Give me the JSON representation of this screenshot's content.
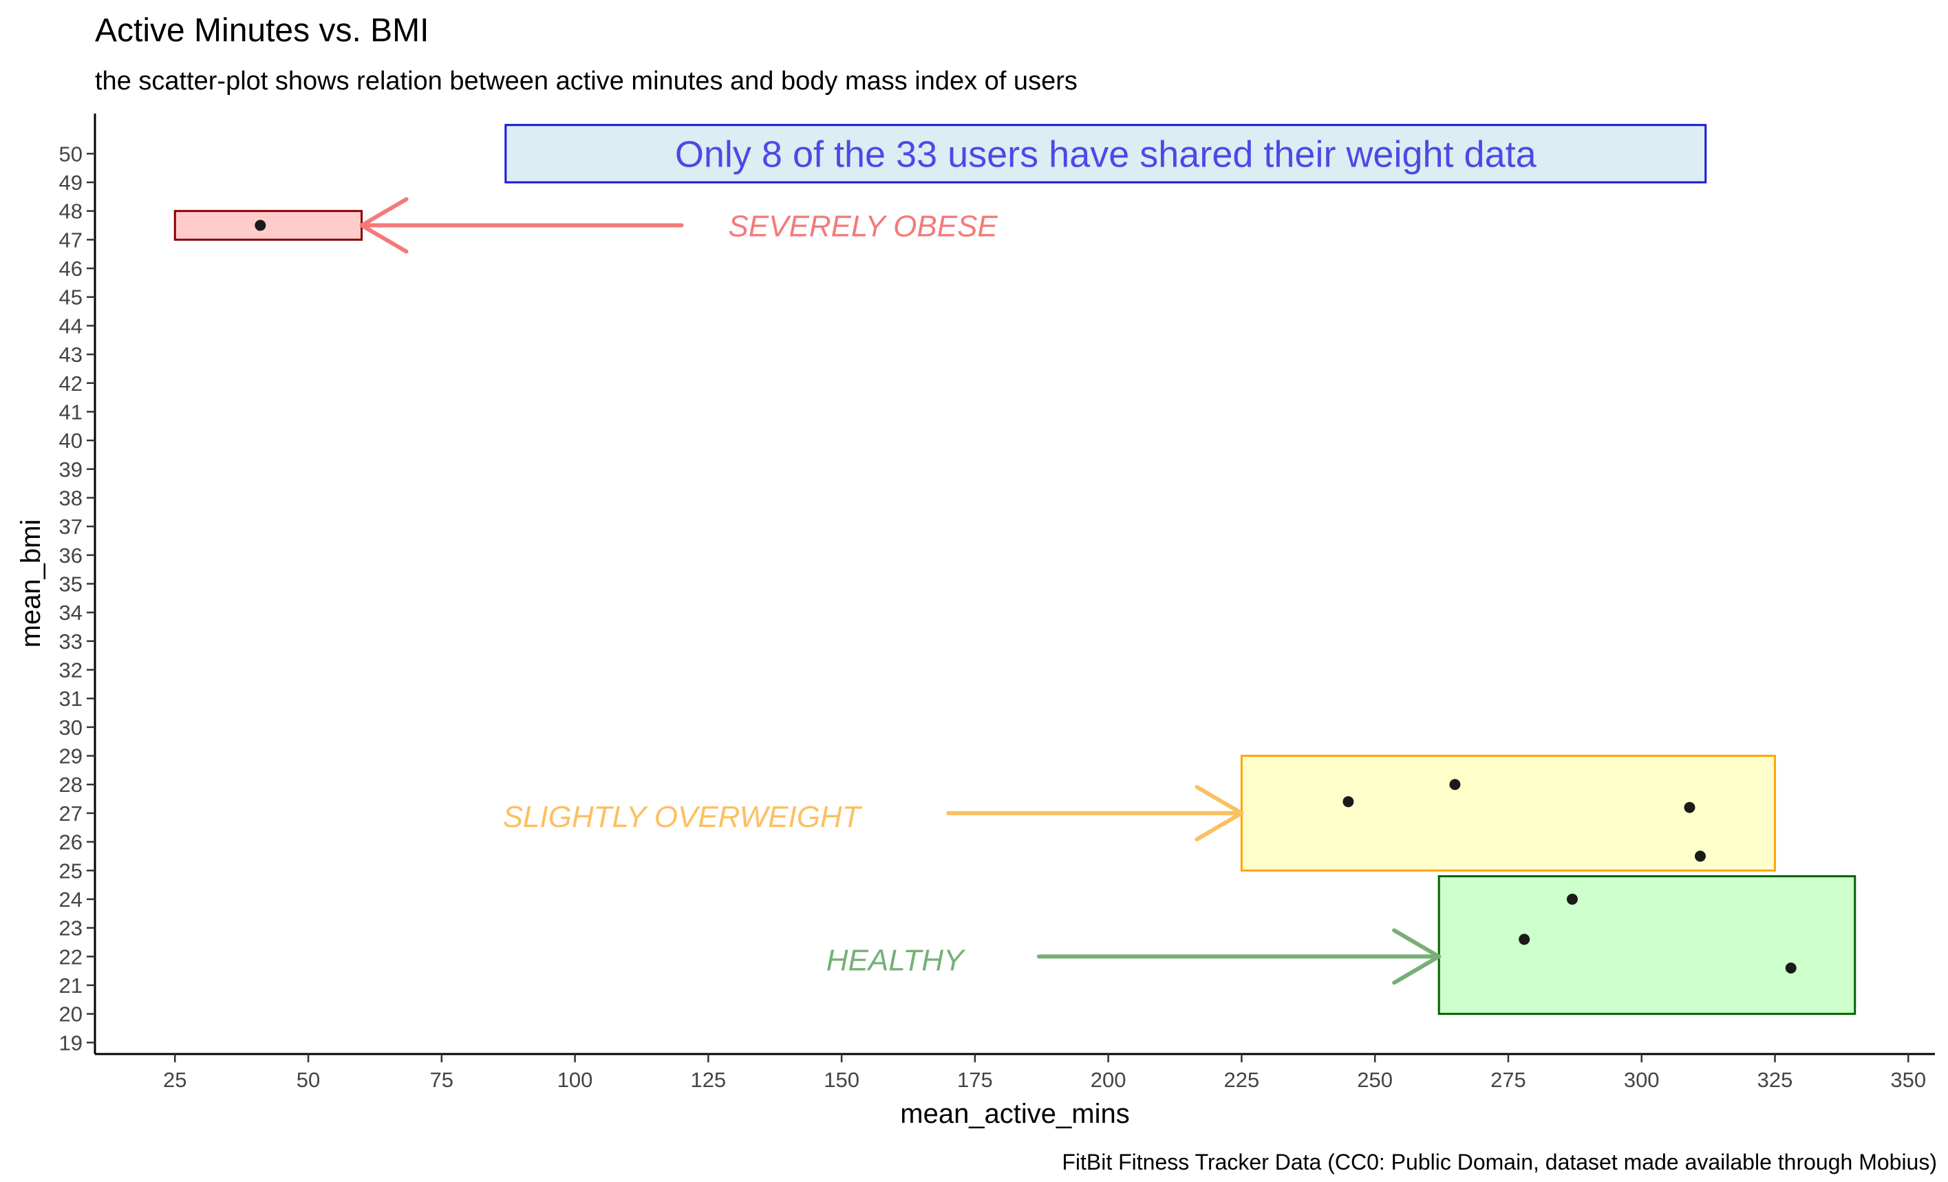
{
  "chart_data": {
    "type": "scatter",
    "title": "Active Minutes vs. BMI",
    "subtitle": "the scatter-plot shows relation between active minutes and body mass index of users",
    "xlabel": "mean_active_mins",
    "ylabel": "mean_bmi",
    "caption": "FitBit Fitness Tracker Data (CC0: Public Domain, dataset made available through Mobius)",
    "xlim": [
      10,
      355
    ],
    "ylim": [
      18.6,
      51.4
    ],
    "x_ticks": [
      25,
      50,
      75,
      100,
      125,
      150,
      175,
      200,
      225,
      250,
      275,
      300,
      325,
      350
    ],
    "y_ticks": [
      19,
      20,
      21,
      22,
      23,
      24,
      25,
      26,
      27,
      28,
      29,
      30,
      31,
      32,
      33,
      34,
      35,
      36,
      37,
      38,
      39,
      40,
      41,
      42,
      43,
      44,
      45,
      46,
      47,
      48,
      49,
      50
    ],
    "grid": false,
    "points": [
      {
        "x": 41,
        "y": 47.5
      },
      {
        "x": 245,
        "y": 27.4
      },
      {
        "x": 265,
        "y": 28.0
      },
      {
        "x": 309,
        "y": 27.2
      },
      {
        "x": 311,
        "y": 25.5
      },
      {
        "x": 287,
        "y": 24.0
      },
      {
        "x": 278,
        "y": 22.6
      },
      {
        "x": 328,
        "y": 21.6
      }
    ],
    "point_color": "#1a1a1a",
    "annotations": {
      "note": {
        "text": "Only 8 of the 33 users have shared their weight data",
        "x_range": [
          87,
          312
        ],
        "y_range": [
          49.0,
          51.0
        ],
        "fill": "#dcedf3",
        "stroke": "#1a1ad6",
        "text_color": "#4a4ae6"
      },
      "regions": [
        {
          "label": "SEVERELY OBESE",
          "x_range": [
            25,
            60
          ],
          "y_range": [
            47.0,
            48.0
          ],
          "fill": "#ffcccc",
          "stroke": "#8b0000",
          "text_color": "#f47a7a",
          "arrow_color": "#f47a7a",
          "label_at": [
            154,
            47.5
          ],
          "arrow_from": [
            120,
            47.5
          ],
          "arrow_to": [
            60,
            47.5
          ]
        },
        {
          "label": "SLIGHTLY OVERWEIGHT",
          "x_range": [
            225,
            325
          ],
          "y_range": [
            25.0,
            29.0
          ],
          "fill": "#ffffcc",
          "stroke": "#ffa500",
          "text_color": "#fcc060",
          "arrow_color": "#fcc060",
          "label_at": [
            120,
            26.9
          ],
          "arrow_from": [
            170,
            27.0
          ],
          "arrow_to": [
            225,
            27.0
          ]
        },
        {
          "label": "HEALTHY",
          "x_range": [
            262,
            340
          ],
          "y_range": [
            20.0,
            24.8
          ],
          "fill": "#ccffcc",
          "stroke": "#006400",
          "text_color": "#76b076",
          "arrow_color": "#76b076",
          "label_at": [
            160,
            21.9
          ],
          "arrow_from": [
            187,
            22.0
          ],
          "arrow_to": [
            262,
            22.0
          ]
        }
      ]
    }
  }
}
